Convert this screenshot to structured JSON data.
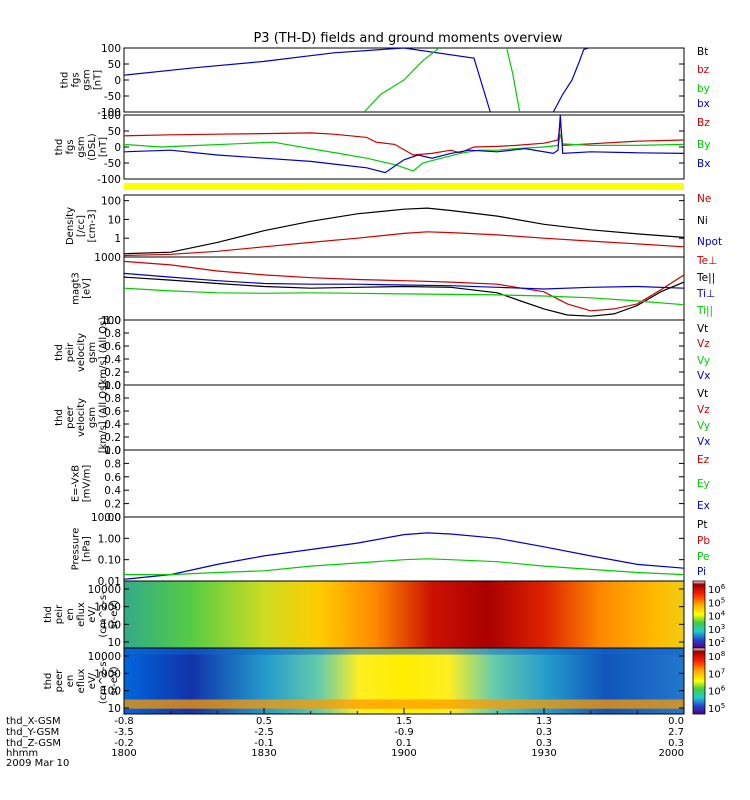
{
  "title": "P3 (TH-D) fields and ground moments overview",
  "chart_data": [
    {
      "type": "line",
      "ylabel_lines": [
        "thd",
        "fgs",
        "gsm",
        "[nT]"
      ],
      "ylim": [
        -100,
        100
      ],
      "yticks": [
        "100",
        "50",
        "0",
        "-50",
        "-100"
      ],
      "legend": [
        {
          "name": "Bt",
          "color": "#000000"
        },
        {
          "name": "bz",
          "color": "#cc0000"
        },
        {
          "name": "by",
          "color": "#00cc00"
        },
        {
          "name": "bx",
          "color": "#0000cc"
        }
      ],
      "series": [
        {
          "name": "bx",
          "color": "#0000cc",
          "x": [
            0,
            15,
            30,
            45,
            60,
            75,
            78.5
          ],
          "y": [
            15,
            38,
            58,
            85,
            100,
            68,
            -100
          ]
        },
        {
          "name": "bx",
          "color": "#0000cc",
          "x": [
            92,
            94,
            96,
            97.5,
            98.5,
            99.5
          ],
          "y": [
            -100,
            -45,
            0,
            55,
            95,
            100
          ]
        },
        {
          "name": "by",
          "color": "#00cc00",
          "x": [
            51.5,
            55,
            60,
            64,
            67.5
          ],
          "y": [
            -100,
            -45,
            0,
            60,
            100
          ]
        },
        {
          "name": "by",
          "color": "#00cc00",
          "x": [
            82,
            83.3,
            84.8
          ],
          "y": [
            100,
            20,
            -100
          ]
        }
      ]
    },
    {
      "type": "line",
      "ylabel_lines": [
        "thd",
        "fgs",
        "gsm",
        "(DSL)",
        "[nT]"
      ],
      "ylim": [
        -100,
        100
      ],
      "yticks": [
        "100",
        "50",
        "0",
        "-50",
        "-100"
      ],
      "legend": [
        {
          "name": "Bz",
          "color": "#cc0000"
        },
        {
          "name": "By",
          "color": "#00cc00"
        },
        {
          "name": "Bx",
          "color": "#0000cc"
        }
      ],
      "series": [
        {
          "name": "Bz",
          "color": "#cc0000",
          "x": [
            0,
            10,
            20,
            30,
            40,
            45,
            52,
            54,
            58,
            62,
            66,
            70,
            72,
            75,
            80,
            84,
            90,
            93,
            93.5,
            94,
            100,
            110,
            120
          ],
          "y": [
            35,
            38,
            40,
            42,
            44,
            40,
            30,
            15,
            8,
            -25,
            -20,
            -10,
            -18,
            0,
            2,
            5,
            12,
            22,
            80,
            5,
            10,
            18,
            22
          ]
        },
        {
          "name": "By",
          "color": "#00cc00",
          "x": [
            0,
            8,
            16,
            24,
            32,
            40,
            46,
            52,
            58,
            62,
            64,
            68,
            72,
            76,
            80,
            84,
            90,
            93,
            93.5,
            94,
            100,
            110,
            120
          ],
          "y": [
            8,
            0,
            5,
            10,
            15,
            -5,
            -20,
            -35,
            -55,
            -75,
            -50,
            -35,
            -20,
            -10,
            -10,
            -5,
            0,
            5,
            40,
            10,
            5,
            5,
            8
          ]
        },
        {
          "name": "Bx",
          "color": "#0000cc",
          "x": [
            0,
            10,
            20,
            30,
            40,
            46,
            52,
            56,
            60,
            63,
            66,
            70,
            74,
            80,
            86,
            92,
            93,
            93.5,
            94,
            100,
            110,
            120
          ],
          "y": [
            -15,
            -10,
            -25,
            -35,
            -45,
            -55,
            -65,
            -80,
            -40,
            -25,
            -35,
            -20,
            -10,
            -15,
            -5,
            -20,
            -10,
            100,
            -20,
            -15,
            -18,
            -20
          ]
        }
      ]
    },
    {
      "type": "line",
      "ylabel_lines": [
        "Density",
        "[/cc]",
        "[cm-3]"
      ],
      "scale": "log",
      "ylim": [
        0.1,
        200
      ],
      "yticks": [
        "100",
        "10",
        "1"
      ],
      "legend": [
        {
          "name": "Ne",
          "color": "#cc0000"
        },
        {
          "name": "Ni",
          "color": "#000000"
        },
        {
          "name": "Npot",
          "color": "#0000cc"
        }
      ],
      "series": [
        {
          "name": "Ni",
          "color": "#000000",
          "x": [
            0,
            10,
            20,
            30,
            40,
            50,
            60,
            65,
            70,
            80,
            90,
            100,
            110,
            120
          ],
          "y": [
            0.15,
            0.18,
            0.6,
            2.5,
            8,
            20,
            35,
            40,
            30,
            15,
            5.5,
            2.8,
            1.7,
            1.1
          ]
        },
        {
          "name": "Ne",
          "color": "#cc0000",
          "x": [
            0,
            10,
            20,
            30,
            40,
            50,
            60,
            65,
            70,
            80,
            90,
            100,
            110,
            120
          ],
          "y": [
            0.12,
            0.14,
            0.2,
            0.35,
            0.6,
            1.0,
            1.8,
            2.2,
            2.0,
            1.5,
            1.0,
            0.7,
            0.5,
            0.35
          ]
        }
      ]
    },
    {
      "type": "line",
      "ylabel_lines": [
        "magt3",
        "[eV]"
      ],
      "scale": "log",
      "ylim": [
        100,
        1000
      ],
      "yticks": [
        "1000",
        "100"
      ],
      "legend": [
        {
          "name": "Te⊥",
          "color": "#cc0000"
        },
        {
          "name": "Te||",
          "color": "#000000"
        },
        {
          "name": "Ti⊥",
          "color": "#0000cc"
        },
        {
          "name": "Ti||",
          "color": "#00cc00"
        }
      ],
      "series": [
        {
          "name": "Te⊥",
          "color": "#cc0000",
          "x": [
            0,
            10,
            20,
            30,
            40,
            50,
            60,
            70,
            80,
            90,
            95,
            100,
            105,
            110,
            115,
            120
          ],
          "y": [
            850,
            750,
            600,
            520,
            470,
            440,
            420,
            400,
            370,
            280,
            180,
            140,
            150,
            180,
            300,
            520
          ]
        },
        {
          "name": "Te||",
          "color": "#000000",
          "x": [
            0,
            10,
            20,
            30,
            40,
            50,
            60,
            70,
            80,
            85,
            90,
            95,
            100,
            105,
            110,
            115,
            120
          ],
          "y": [
            480,
            430,
            380,
            340,
            320,
            330,
            340,
            330,
            270,
            200,
            150,
            120,
            115,
            125,
            170,
            280,
            400
          ]
        },
        {
          "name": "Ti⊥",
          "color": "#0000cc",
          "x": [
            0,
            10,
            20,
            30,
            40,
            50,
            60,
            70,
            80,
            90,
            100,
            110,
            120
          ],
          "y": [
            550,
            480,
            420,
            380,
            370,
            370,
            360,
            350,
            330,
            310,
            330,
            340,
            320
          ]
        },
        {
          "name": "Ti||",
          "color": "#00cc00",
          "x": [
            0,
            10,
            20,
            30,
            40,
            50,
            60,
            70,
            80,
            90,
            100,
            110,
            120
          ],
          "y": [
            320,
            290,
            270,
            265,
            270,
            265,
            260,
            255,
            250,
            240,
            225,
            200,
            175
          ]
        }
      ]
    },
    {
      "type": "line",
      "ylabel_lines": [
        "thd",
        "peir",
        "velocity",
        "gsm",
        "[km/s] (All Qs)"
      ],
      "ylim": [
        0,
        1
      ],
      "yticks": [
        "1.0",
        "0.8",
        "0.6",
        "0.4",
        "0.2",
        "0.0"
      ],
      "legend": [
        {
          "name": "Vt",
          "color": "#000000"
        },
        {
          "name": "Vz",
          "color": "#cc0000"
        },
        {
          "name": "Vy",
          "color": "#00cc00"
        },
        {
          "name": "Vx",
          "color": "#0000cc"
        }
      ],
      "series": []
    },
    {
      "type": "line",
      "ylabel_lines": [
        "thd",
        "peer",
        "velocity",
        "gsm",
        "[km/s] (All Qs)"
      ],
      "ylim": [
        0,
        1
      ],
      "yticks": [
        "1.0",
        "0.8",
        "0.6",
        "0.4",
        "0.2",
        "0.0"
      ],
      "legend": [
        {
          "name": "Vt",
          "color": "#000000"
        },
        {
          "name": "Vz",
          "color": "#cc0000"
        },
        {
          "name": "Vy",
          "color": "#00cc00"
        },
        {
          "name": "Vx",
          "color": "#0000cc"
        }
      ],
      "series": []
    },
    {
      "type": "line",
      "ylabel_lines": [
        "E=-VxB",
        "[mV/m]"
      ],
      "ylim": [
        0,
        1
      ],
      "yticks": [
        "1.0",
        "0.8",
        "0.6",
        "0.4",
        "0.2",
        "0.0"
      ],
      "legend": [
        {
          "name": "Ez",
          "color": "#cc0000"
        },
        {
          "name": "Ey",
          "color": "#00cc00"
        },
        {
          "name": "Ex",
          "color": "#0000cc"
        }
      ],
      "series": []
    },
    {
      "type": "line",
      "ylabel_lines": [
        "Pressure",
        "[nPa]"
      ],
      "scale": "log",
      "ylim": [
        0.01,
        10
      ],
      "yticks": [
        "10.00",
        "1.00",
        "0.10",
        "0.01"
      ],
      "legend": [
        {
          "name": "Pt",
          "color": "#000000"
        },
        {
          "name": "Pb",
          "color": "#cc0000"
        },
        {
          "name": "Pe",
          "color": "#00cc00"
        },
        {
          "name": "Pi",
          "color": "#0000cc"
        }
      ],
      "series": [
        {
          "name": "Pi",
          "color": "#0000cc",
          "x": [
            0,
            10,
            20,
            30,
            40,
            50,
            60,
            65,
            70,
            80,
            90,
            100,
            110,
            120
          ],
          "y": [
            0.012,
            0.02,
            0.06,
            0.15,
            0.3,
            0.6,
            1.5,
            1.8,
            1.6,
            1.0,
            0.4,
            0.15,
            0.06,
            0.04
          ]
        },
        {
          "name": "Pe",
          "color": "#00cc00",
          "x": [
            0,
            10,
            20,
            30,
            40,
            50,
            60,
            65,
            70,
            80,
            90,
            100,
            110,
            120
          ],
          "y": [
            0.02,
            0.02,
            0.025,
            0.03,
            0.05,
            0.07,
            0.1,
            0.11,
            0.1,
            0.08,
            0.05,
            0.035,
            0.025,
            0.02
          ]
        }
      ]
    },
    {
      "type": "heatmap",
      "ylabel_lines": [
        "thd",
        "peir",
        "en",
        "eflux",
        "eV/",
        "(cm^2-s-",
        "sr-eV)"
      ],
      "yticks": [
        "10000",
        "1000",
        "100",
        "10"
      ],
      "colorbar_ticks": [
        "10^6",
        "10^5",
        "10^4",
        "10^3",
        "10^2"
      ]
    },
    {
      "type": "heatmap",
      "ylabel_lines": [
        "thd",
        "peer",
        "en",
        "eflux",
        "eV/",
        "(cm^2-s-",
        "sr-eV)"
      ],
      "yticks": [
        "10000",
        "1000",
        "100",
        "10"
      ],
      "colorbar_ticks": [
        "10^8",
        "10^7",
        "10^6",
        "10^5"
      ]
    }
  ],
  "xaxis": {
    "labels": [
      "thd_X-GSM",
      "thd_Y-GSM",
      "thd_Z-GSM",
      "hhmm",
      "2009 Mar 10"
    ],
    "rows": [
      [
        "-0.8",
        "0.5",
        "1.5",
        "1.3",
        "0.0"
      ],
      [
        "-3.5",
        "-2.5",
        "-0.9",
        "0.3",
        "2.7"
      ],
      [
        "-0.2",
        "-0.1",
        "0.1",
        "0.3",
        "0.3"
      ],
      [
        "1800",
        "1830",
        "1900",
        "1930",
        "2000"
      ]
    ]
  }
}
